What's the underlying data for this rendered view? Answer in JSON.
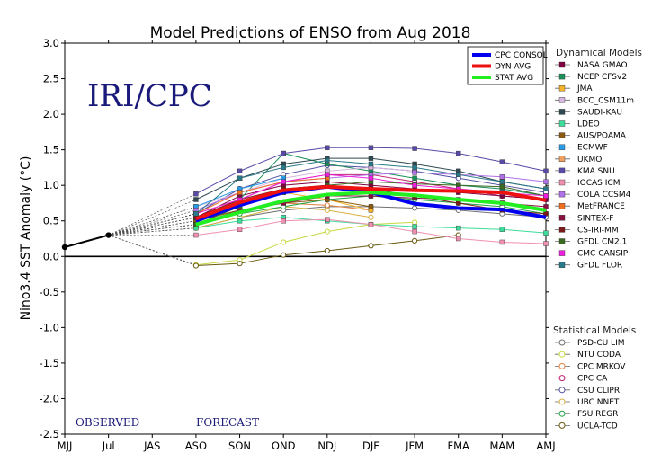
{
  "chart_data": {
    "type": "line",
    "title": "Model Predictions of ENSO from Aug 2018",
    "ylabel": "Nino3.4 SST Anomaly (°C)",
    "watermark": "IRI/CPC",
    "region_labels": {
      "observed": "OBSERVED",
      "forecast": "FORECAST"
    },
    "categories": [
      "MJJ",
      "Jul",
      "JAS",
      "ASO",
      "SON",
      "OND",
      "NDJ",
      "DJF",
      "JFM",
      "FMA",
      "MAM",
      "AMJ"
    ],
    "ylim": [
      -2.5,
      3.0
    ],
    "yticks": [
      "3.0",
      "2.5",
      "2.0",
      "1.5",
      "1.0",
      "0.5",
      "0.0",
      "-0.5",
      "-1.0",
      "-1.5",
      "-2.0",
      "-2.5"
    ],
    "observed": {
      "x": [
        "MJJ",
        "Jul"
      ],
      "values": [
        0.13,
        0.3
      ],
      "color": "#000000"
    },
    "consensus_legend": [
      {
        "name": "CPC CONSOL",
        "color": "#0000ee"
      },
      {
        "name": "DYN AVG",
        "color": "#ee1111"
      },
      {
        "name": "STAT AVG",
        "color": "#22ee22"
      }
    ],
    "consensus": [
      {
        "name": "CPC CONSOL",
        "color": "#0000ee",
        "values": [
          0.5,
          0.72,
          0.9,
          0.98,
          0.9,
          0.74,
          0.68,
          0.66,
          0.55
        ]
      },
      {
        "name": "DYN AVG",
        "color": "#ee1111",
        "values": [
          0.53,
          0.76,
          0.93,
          0.98,
          0.95,
          0.93,
          0.92,
          0.9,
          0.79
        ]
      },
      {
        "name": "STAT AVG",
        "color": "#22ee22",
        "values": [
          0.45,
          0.62,
          0.78,
          0.87,
          0.9,
          0.86,
          0.8,
          0.75,
          0.65
        ]
      }
    ],
    "dynamical_header": "Dynamical Models",
    "dynamical": [
      {
        "name": "NASA GMAO",
        "color": "#800040",
        "values": [
          0.55,
          0.85,
          1.0,
          1.05,
          1.0,
          0.95,
          0.9,
          0.85,
          0.8
        ]
      },
      {
        "name": "NCEP CFSv2",
        "color": "#1b8f5a",
        "values": [
          0.5,
          0.8,
          1.45,
          1.3,
          1.2,
          1.1,
          1.0,
          0.95,
          0.85
        ]
      },
      {
        "name": "JMA",
        "color": "#f2b42a",
        "values": [
          0.55,
          0.7,
          0.9,
          0.8,
          0.65,
          null,
          null,
          null,
          null
        ]
      },
      {
        "name": "BCC_CSM11m",
        "color": "#d8b8e0",
        "values": [
          0.7,
          0.9,
          1.1,
          1.2,
          1.25,
          1.2,
          null,
          null,
          null
        ]
      },
      {
        "name": "SAUDI-KAU",
        "color": "#2e4a52",
        "values": [
          0.8,
          1.1,
          1.3,
          1.38,
          1.38,
          1.3,
          1.2,
          1.05,
          0.95
        ]
      },
      {
        "name": "LDEO",
        "color": "#3ddc9a",
        "values": [
          0.4,
          0.5,
          0.55,
          0.5,
          0.45,
          0.42,
          0.4,
          0.38,
          0.33
        ]
      },
      {
        "name": "AUS/POAMA",
        "color": "#8a5a10",
        "values": [
          0.5,
          0.65,
          0.75,
          0.8,
          0.7,
          null,
          null,
          null,
          null
        ]
      },
      {
        "name": "ECMWF",
        "color": "#2a9be8",
        "values": [
          0.7,
          0.95,
          1.1,
          null,
          null,
          null,
          null,
          null,
          null
        ]
      },
      {
        "name": "UKMO",
        "color": "#f0a060",
        "values": [
          0.6,
          0.8,
          0.95,
          null,
          null,
          null,
          null,
          null,
          null
        ]
      },
      {
        "name": "KMA SNU",
        "color": "#5a4aa8",
        "values": [
          0.88,
          1.2,
          1.45,
          1.53,
          1.53,
          1.52,
          1.45,
          1.33,
          1.2
        ]
      },
      {
        "name": "IOCAS ICM",
        "color": "#f090b0",
        "values": [
          0.3,
          0.38,
          0.5,
          0.52,
          0.45,
          0.35,
          0.25,
          0.2,
          0.18
        ]
      },
      {
        "name": "COLA CCSM4",
        "color": "#b070e8",
        "values": [
          0.65,
          0.9,
          1.05,
          1.1,
          1.15,
          1.18,
          1.15,
          1.12,
          1.05
        ]
      },
      {
        "name": "MetFRANCE",
        "color": "#f07020",
        "values": [
          0.6,
          0.9,
          1.05,
          1.1,
          null,
          null,
          null,
          null,
          null
        ]
      },
      {
        "name": "SINTEX-F",
        "color": "#8a1040",
        "values": [
          0.45,
          0.65,
          0.75,
          0.85,
          0.85,
          0.82,
          0.8,
          0.75,
          0.7
        ]
      },
      {
        "name": "CS-IRI-MM",
        "color": "#7a1a1a",
        "values": [
          0.55,
          0.8,
          0.95,
          1.0,
          0.95,
          0.85,
          0.75,
          0.65,
          0.6
        ]
      },
      {
        "name": "GFDL CM2.1",
        "color": "#3a6a20",
        "values": [
          0.45,
          0.7,
          0.9,
          1.0,
          1.05,
          1.02,
          1.0,
          0.98,
          0.85
        ]
      },
      {
        "name": "CMC CANSIP",
        "color": "#ee20dd",
        "values": [
          0.6,
          0.8,
          1.05,
          1.15,
          1.1,
          1.0,
          0.95,
          0.9,
          0.85
        ]
      },
      {
        "name": "GFDL FLOR",
        "color": "#2a7a8a",
        "values": [
          0.6,
          1.1,
          1.25,
          1.35,
          1.3,
          1.25,
          1.15,
          1.05,
          0.95
        ]
      }
    ],
    "statistical_header": "Statistical Models",
    "statistical": [
      {
        "name": "PSD-CU LIM",
        "color": "#707070",
        "values": [
          0.4,
          0.55,
          0.65,
          0.7,
          0.7,
          0.68,
          0.65,
          0.6,
          0.55
        ]
      },
      {
        "name": "NTU CODA",
        "color": "#c8d840",
        "values": [
          -0.12,
          -0.05,
          0.2,
          0.35,
          0.45,
          0.48,
          null,
          null,
          null
        ]
      },
      {
        "name": "CPC MRKOV",
        "color": "#e08040",
        "values": [
          0.5,
          0.65,
          0.75,
          0.72,
          0.65,
          null,
          null,
          null,
          null
        ]
      },
      {
        "name": "CPC CA",
        "color": "#c02070",
        "values": [
          0.55,
          0.8,
          1.05,
          1.15,
          1.15,
          1.05,
          0.95,
          0.85,
          0.8
        ]
      },
      {
        "name": "CSU CLIPR",
        "color": "#5050a0",
        "values": [
          0.6,
          0.95,
          1.15,
          1.28,
          1.25,
          1.2,
          1.1,
          1.0,
          0.9
        ]
      },
      {
        "name": "UBC NNET",
        "color": "#d8b040",
        "values": [
          0.4,
          0.55,
          0.7,
          0.65,
          0.55,
          null,
          null,
          null,
          null
        ]
      },
      {
        "name": "FSU REGR",
        "color": "#20a040",
        "values": [
          0.45,
          0.6,
          0.7,
          0.8,
          0.85,
          0.8,
          0.75,
          0.7,
          0.6
        ]
      },
      {
        "name": "UCLA-TCD",
        "color": "#6a5a10",
        "values": [
          -0.13,
          -0.1,
          0.02,
          0.08,
          0.15,
          0.22,
          0.3,
          null,
          null
        ]
      }
    ]
  }
}
